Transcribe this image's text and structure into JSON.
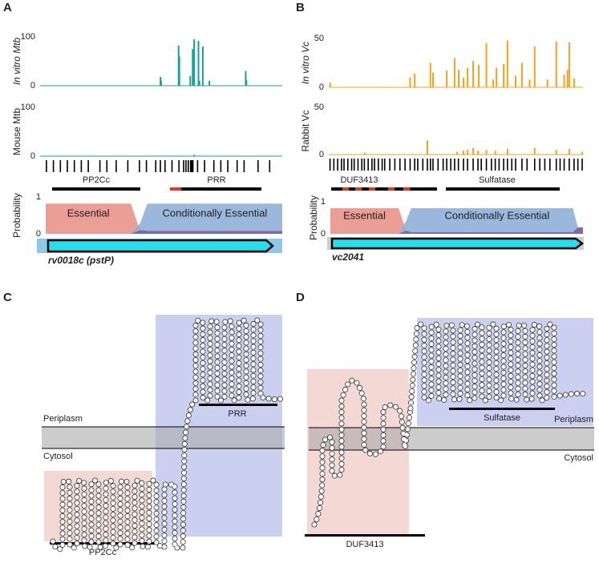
{
  "chart_data": [
    {
      "type": "spike",
      "y_label": "In vitro Mtb",
      "color": "#1f9e98",
      "xlim": [
        0,
        100
      ],
      "ylim": [
        0,
        100
      ],
      "yticks": [
        0,
        100
      ],
      "x": [
        49.7,
        50.0,
        57.2,
        57.5,
        62.0,
        63.0,
        63.6,
        65.4,
        65.8,
        67.2,
        69.9,
        84.9,
        85.2
      ],
      "values": [
        18,
        10,
        82,
        60,
        20,
        75,
        95,
        92,
        10,
        80,
        10,
        30,
        12
      ]
    },
    {
      "type": "spike",
      "y_label": "Mouse Mtb",
      "color": "#1f9e98",
      "xlim": [
        0,
        100
      ],
      "ylim": [
        0,
        100
      ],
      "yticks": [
        0,
        100
      ],
      "x": [
        49.7,
        57.2,
        63.6,
        65.4
      ],
      "values": [
        1,
        1,
        3,
        1
      ]
    },
    {
      "type": "sites",
      "xlim": [
        0,
        100
      ],
      "x": [
        1,
        4,
        7,
        10,
        13,
        16,
        19,
        24,
        27,
        31,
        36,
        41,
        44,
        48,
        50,
        52,
        55,
        58,
        60,
        61,
        62,
        63,
        63.5,
        64,
        66,
        69,
        73,
        76,
        79,
        83,
        86,
        92,
        97
      ]
    },
    {
      "type": "area",
      "y_label": "Probability",
      "xlim": [
        0,
        100
      ],
      "ylim": [
        0,
        1
      ],
      "yticks": [
        0,
        1
      ],
      "x": [
        0,
        36,
        40,
        43,
        100
      ],
      "series": [
        {
          "name": "Essential",
          "color": "#e8948a",
          "values": [
            0.82,
            0.82,
            0.05,
            0,
            0
          ]
        },
        {
          "name": "Conditionally Essential",
          "color": "#8fb0d8",
          "values": [
            0,
            0,
            0.3,
            0.82,
            0.82
          ]
        },
        {
          "color": "#7e5aa0",
          "values": [
            0,
            0,
            0.1,
            0.08,
            0.08
          ]
        }
      ]
    },
    {
      "type": "spike",
      "y_label": "In vitro Vc",
      "color": "#f4a21c",
      "xlim": [
        0,
        100
      ],
      "ylim": [
        0,
        50
      ],
      "yticks": [
        0,
        50
      ],
      "x": [
        0.5,
        32,
        33.8,
        40,
        41,
        46.4,
        49.5,
        51.1,
        53,
        54.6,
        56.8,
        59,
        62,
        64.7,
        66,
        68.8,
        70.3,
        73.5,
        76,
        79,
        81,
        86,
        89.5,
        92.6,
        93.9,
        94.6,
        96.5
      ],
      "values": [
        5,
        10,
        14,
        25,
        15,
        17,
        30,
        18,
        10,
        20,
        27,
        23,
        45,
        8,
        20,
        24,
        48,
        12,
        25,
        8,
        42,
        8,
        47,
        13,
        18,
        46,
        9
      ]
    },
    {
      "type": "spike",
      "y_label": "Rabbit Vc",
      "color": "#f4a21c",
      "xlim": [
        0,
        100
      ],
      "ylim": [
        0,
        50
      ],
      "yticks": [
        0,
        50
      ],
      "x": [
        14.2,
        38.8,
        50.5,
        53,
        54.6,
        56.8,
        58.7,
        62,
        65.5,
        70.3,
        81,
        89.5,
        94.6,
        99.7
      ],
      "values": [
        2,
        15,
        3,
        4,
        5,
        7,
        4,
        5,
        4,
        6,
        7,
        5,
        6,
        3
      ]
    },
    {
      "type": "sites",
      "xlim": [
        0,
        100
      ],
      "x": [
        0.5,
        2,
        3.5,
        5,
        6,
        7.5,
        9,
        10,
        11.5,
        13,
        14,
        15.5,
        17,
        18,
        19.5,
        21,
        22,
        24,
        26,
        28,
        30,
        32,
        33.8,
        35,
        37,
        38.8,
        40,
        41,
        43,
        45,
        46.4,
        48,
        49.5,
        51,
        53,
        54.6,
        56.8,
        58.7,
        60,
        62,
        64,
        65.5,
        67,
        68.8,
        70.3,
        72,
        73.5,
        76,
        78,
        81,
        83,
        85,
        87,
        89.5,
        91,
        92.6,
        94.6,
        96.5,
        98,
        99.7
      ]
    },
    {
      "type": "area",
      "y_label": "Probability",
      "xlim": [
        0,
        100
      ],
      "ylim": [
        0,
        1
      ],
      "yticks": [
        0,
        1
      ],
      "x": [
        0,
        27,
        30,
        32,
        96,
        98,
        100
      ],
      "series": [
        {
          "name": "Essential",
          "color": "#e8948a",
          "values": [
            0.8,
            0.8,
            0.1,
            0,
            0,
            0,
            0
          ]
        },
        {
          "name": "Conditionally Essential",
          "color": "#8fb0d8",
          "values": [
            0,
            0,
            0.4,
            0.8,
            0.8,
            0.2,
            0.2
          ]
        },
        {
          "color": "#7e5aa0",
          "values": [
            0,
            0,
            0.1,
            0.05,
            0.05,
            0.2,
            0.2
          ]
        }
      ]
    }
  ],
  "panels": {
    "A": {
      "letter": "A",
      "domains": [
        "PP2Cc",
        "PRR"
      ],
      "gene": "rv0018c (pstP)"
    },
    "B": {
      "letter": "B",
      "domains": [
        "DUF3413",
        "Sulfatase"
      ],
      "gene": "vc2041"
    },
    "C": {
      "letter": "C",
      "periplasm": "Periplasm",
      "cytosol": "Cytosol",
      "domains": [
        "PRR",
        "PP2Cc"
      ]
    },
    "D": {
      "letter": "D",
      "periplasm": "Periplasm",
      "cytosol": "Cytosol",
      "domains": [
        "Sulfatase",
        "DUF3413"
      ]
    }
  }
}
